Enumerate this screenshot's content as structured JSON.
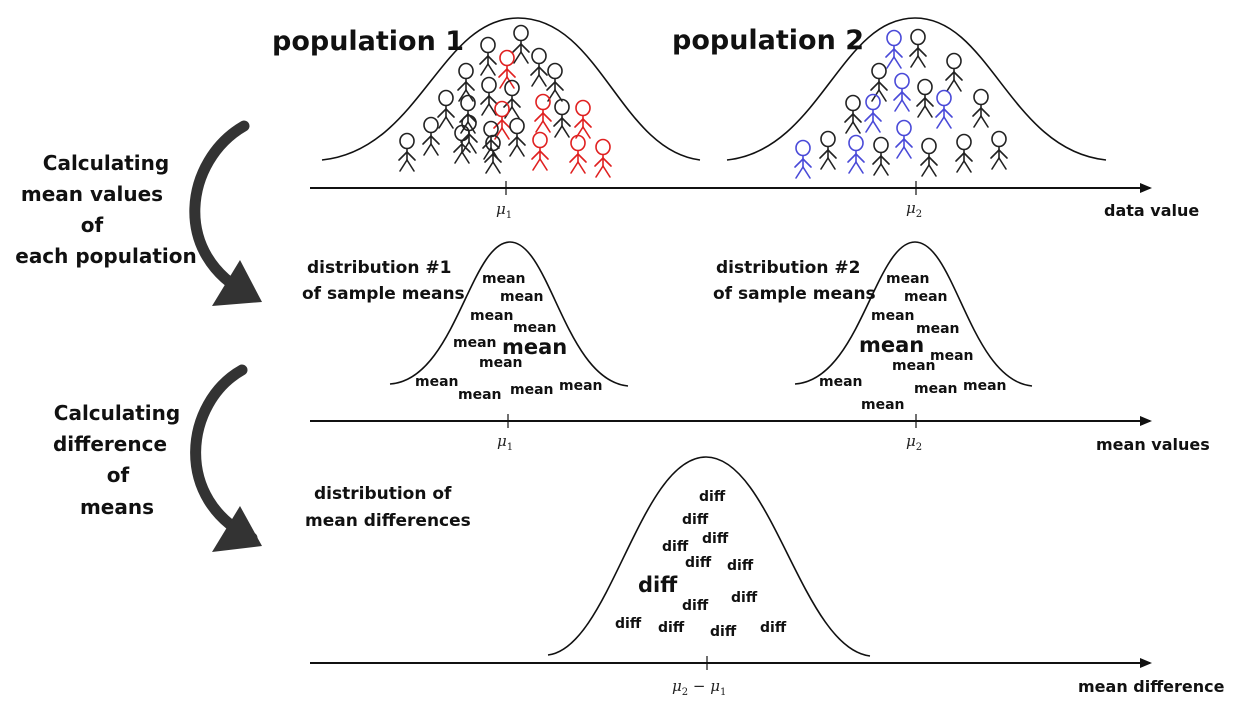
{
  "populations": {
    "title_1": "population 1",
    "title_2": "population 2"
  },
  "steps": {
    "step1": [
      "Calculating",
      "mean values",
      "of",
      "each population"
    ],
    "step2": [
      "Calculating",
      "difference",
      "of",
      "means"
    ]
  },
  "axes": {
    "data_axis": {
      "label": "data value",
      "mu1": "μ",
      "mu1_sub": "1",
      "mu2": "μ",
      "mu2_sub": "2"
    },
    "mean_axis": {
      "label": "mean values",
      "mu1": "μ",
      "mu1_sub": "1",
      "mu2": "μ",
      "mu2_sub": "2"
    },
    "diff_axis": {
      "label": "mean difference",
      "tick": "μ",
      "tick_sub_a": "2",
      "tick_minus": " − ",
      "tick_b": "μ",
      "tick_sub_b": "1"
    }
  },
  "distributions": {
    "means_1": {
      "label_line1": "distribution #1",
      "label_line2": "of sample means"
    },
    "means_2": {
      "label_line1": "distribution #2",
      "label_line2": "of sample means"
    },
    "diffs": {
      "label_line1": "distribution of",
      "label_line2": "mean differences"
    }
  },
  "tokens": {
    "mean_word": "mean",
    "diff_word": "diff"
  },
  "colors": {
    "population_1_highlight": "#e02020",
    "population_2_highlight": "#4a4ad8",
    "diff_highlight": "#d07ae0",
    "figure": "#222222"
  }
}
